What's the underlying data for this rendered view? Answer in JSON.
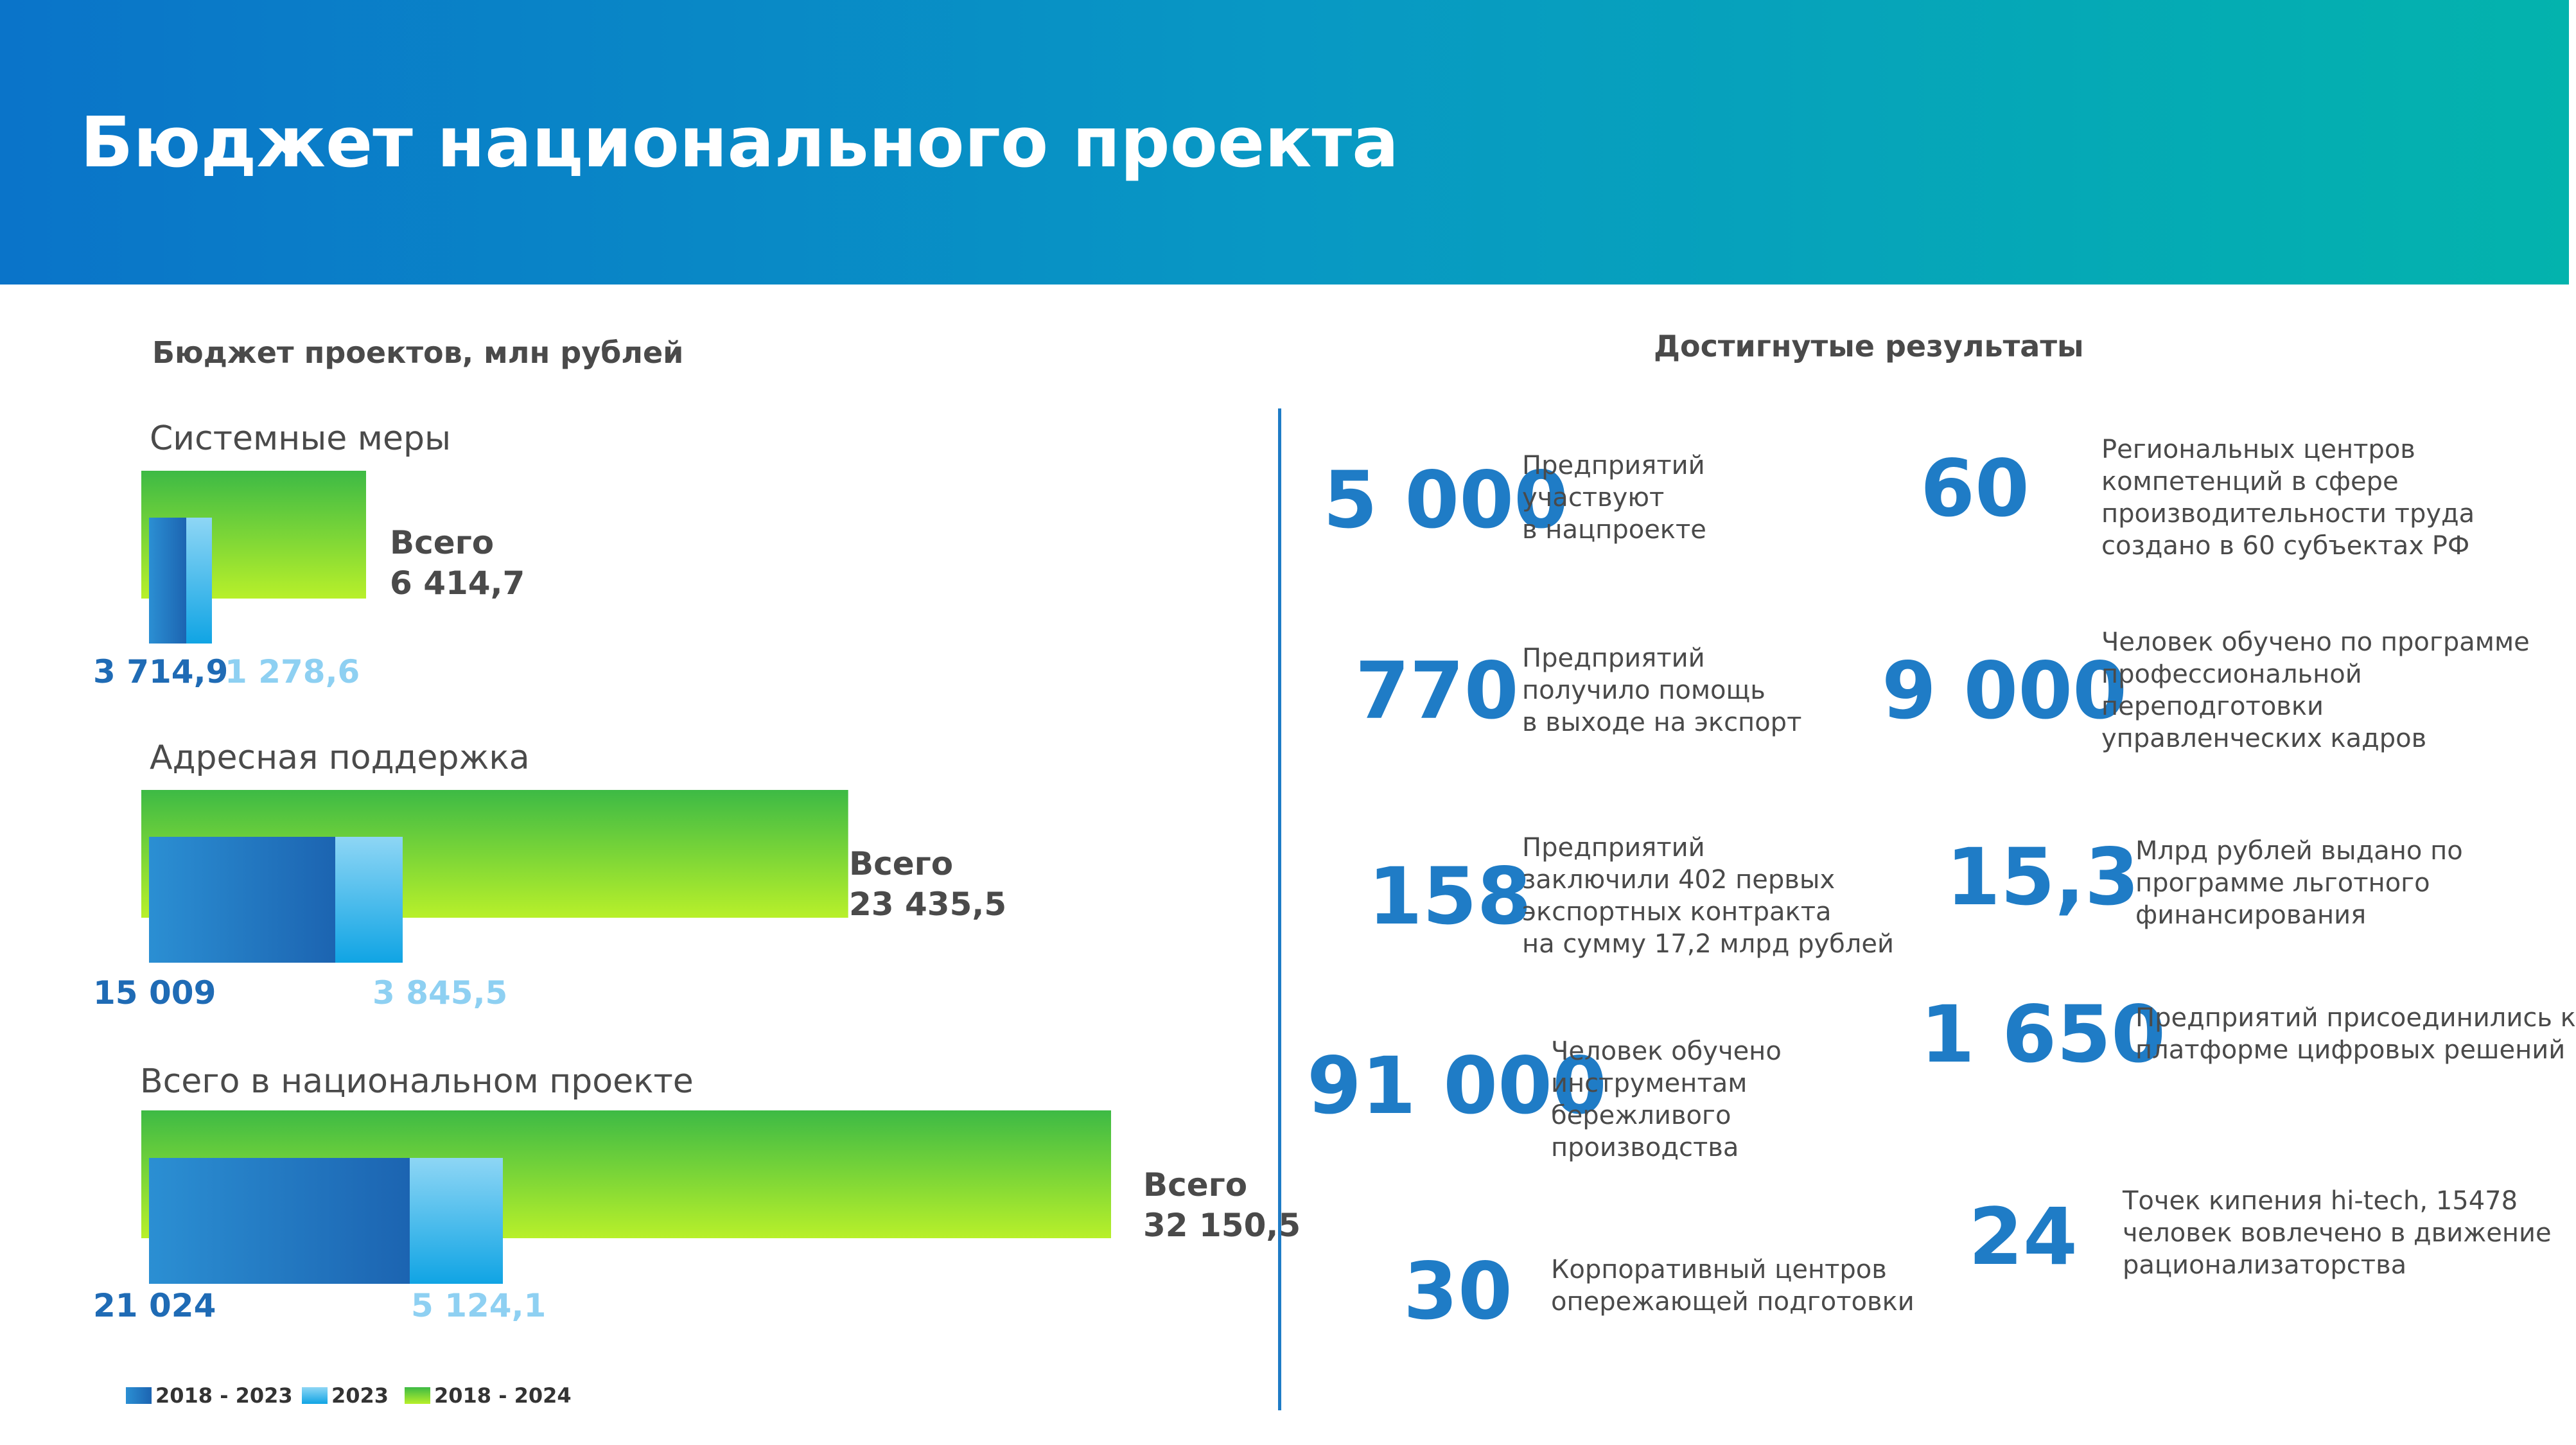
{
  "header": {
    "title": "Бюджет национального проекта"
  },
  "chart_data": {
    "type": "bar",
    "title": "Бюджет проектов, млн рублей",
    "categories": [
      "Системные меры",
      "Адресная поддержка",
      "Всего в национальном проекте"
    ],
    "total_label": "Всего",
    "series": [
      {
        "name": "2018 - 2023",
        "values": [
          3714.9,
          15009,
          21024
        ],
        "labels": [
          "3 714,9",
          "15 009",
          "21 024"
        ]
      },
      {
        "name": "2023",
        "values": [
          1278.6,
          3845.5,
          5124.1
        ],
        "labels": [
          "1 278,6",
          "3 845,5",
          "5 124,1"
        ]
      },
      {
        "name": "2018 - 2024",
        "values": [
          6414.7,
          23435.5,
          32150.5
        ],
        "labels": [
          "6 414,7",
          "23 435,5",
          "32 150,5"
        ]
      }
    ],
    "colors": {
      "2018 - 2023": [
        "#2b8fd3",
        "#1c64b1"
      ],
      "2023": [
        "#8ed6f5",
        "#10a4e4"
      ],
      "2018 - 2024": [
        "#3dba45",
        "#b8f02a"
      ]
    },
    "legend": "bottom-left",
    "grid": false
  },
  "results": {
    "heading": "Достигнутые результаты",
    "items": [
      {
        "value": "5 000",
        "lines": [
          "Предприятий",
          "участвуют",
          "в нацпроекте"
        ]
      },
      {
        "value": "60",
        "lines": [
          "Региональных центров",
          "компетенций в сфере",
          "производительности труда",
          "создано в 60 субъектах РФ"
        ]
      },
      {
        "value": "770",
        "lines": [
          "Предприятий",
          "получило помощь",
          "в выходе на экспорт"
        ]
      },
      {
        "value": "9 000",
        "lines": [
          "Человек обучено по программе",
          "профессиональной",
          "переподготовки",
          "управленческих кадров"
        ]
      },
      {
        "value": "158",
        "lines": [
          "Предприятий",
          "заключили 402 первых",
          "экспортных контракта",
          "на сумму 17,2 млрд рублей"
        ]
      },
      {
        "value": "15,3",
        "lines": [
          "Млрд рублей выдано по",
          "программе льготного",
          "финансирования"
        ]
      },
      {
        "value": "91 000",
        "lines": [
          "Человек обучено",
          "инструментам",
          "бережливого",
          "производства"
        ]
      },
      {
        "value": "1 650",
        "lines": [
          "Предприятий присоединились к",
          "платформе цифровых решений"
        ]
      },
      {
        "value": "30",
        "lines": [
          "Корпоративный центров",
          "опережающей подготовки"
        ]
      },
      {
        "value": "24",
        "lines": [
          "Точек кипения hi-tech, 15478",
          "человек вовлечено в движение",
          "рационализаторства"
        ]
      }
    ]
  }
}
